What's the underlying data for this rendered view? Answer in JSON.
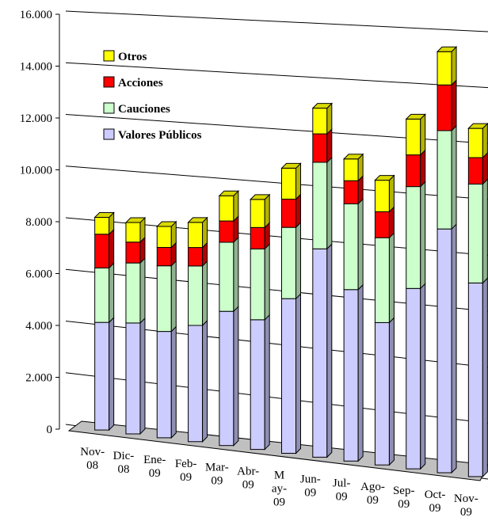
{
  "chart_data": {
    "type": "bar",
    "stacked": true,
    "three_d": true,
    "title": "",
    "xlabel": "",
    "ylabel": "",
    "ylim": [
      0,
      16000
    ],
    "y_ticks": [
      "0",
      "2.000",
      "4.000",
      "6.000",
      "8.000",
      "10.000",
      "12.000",
      "14.000",
      "16.000"
    ],
    "grid": true,
    "legend_position": "top-left",
    "categories": [
      [
        "Nov-",
        "08"
      ],
      [
        "Dic-",
        "08"
      ],
      [
        "Ene-",
        "09"
      ],
      [
        "Feb-",
        "09"
      ],
      [
        "Mar-",
        "09"
      ],
      [
        "Abr-",
        "09"
      ],
      [
        "M",
        "ay-",
        "09"
      ],
      [
        "Jun-",
        "09"
      ],
      [
        "Jul-",
        "09"
      ],
      [
        "Ago-",
        "09"
      ],
      [
        "Sep-",
        "09"
      ],
      [
        "Oct-",
        "09"
      ],
      [
        "Nov-",
        "09"
      ]
    ],
    "series": [
      {
        "name": "Valores Públicos",
        "color": "#ccccff",
        "values": [
          4150,
          4250,
          4050,
          4400,
          5050,
          4850,
          5750,
          7700,
          6300,
          5200,
          6550,
          8800,
          6950
        ]
      },
      {
        "name": "Cauciones",
        "color": "#ccffcc",
        "values": [
          2100,
          2300,
          2500,
          2250,
          2600,
          2650,
          2650,
          3200,
          3150,
          3100,
          3700,
          3550,
          3550
        ]
      },
      {
        "name": "Acciones",
        "color": "#ff0000",
        "values": [
          1300,
          800,
          700,
          700,
          800,
          800,
          1050,
          1050,
          850,
          950,
          1150,
          1650,
          950
        ]
      },
      {
        "name": "Otros",
        "color": "#ffff00",
        "values": [
          650,
          750,
          800,
          950,
          950,
          1050,
          1150,
          950,
          800,
          1150,
          1300,
          1200,
          1050
        ]
      }
    ]
  }
}
